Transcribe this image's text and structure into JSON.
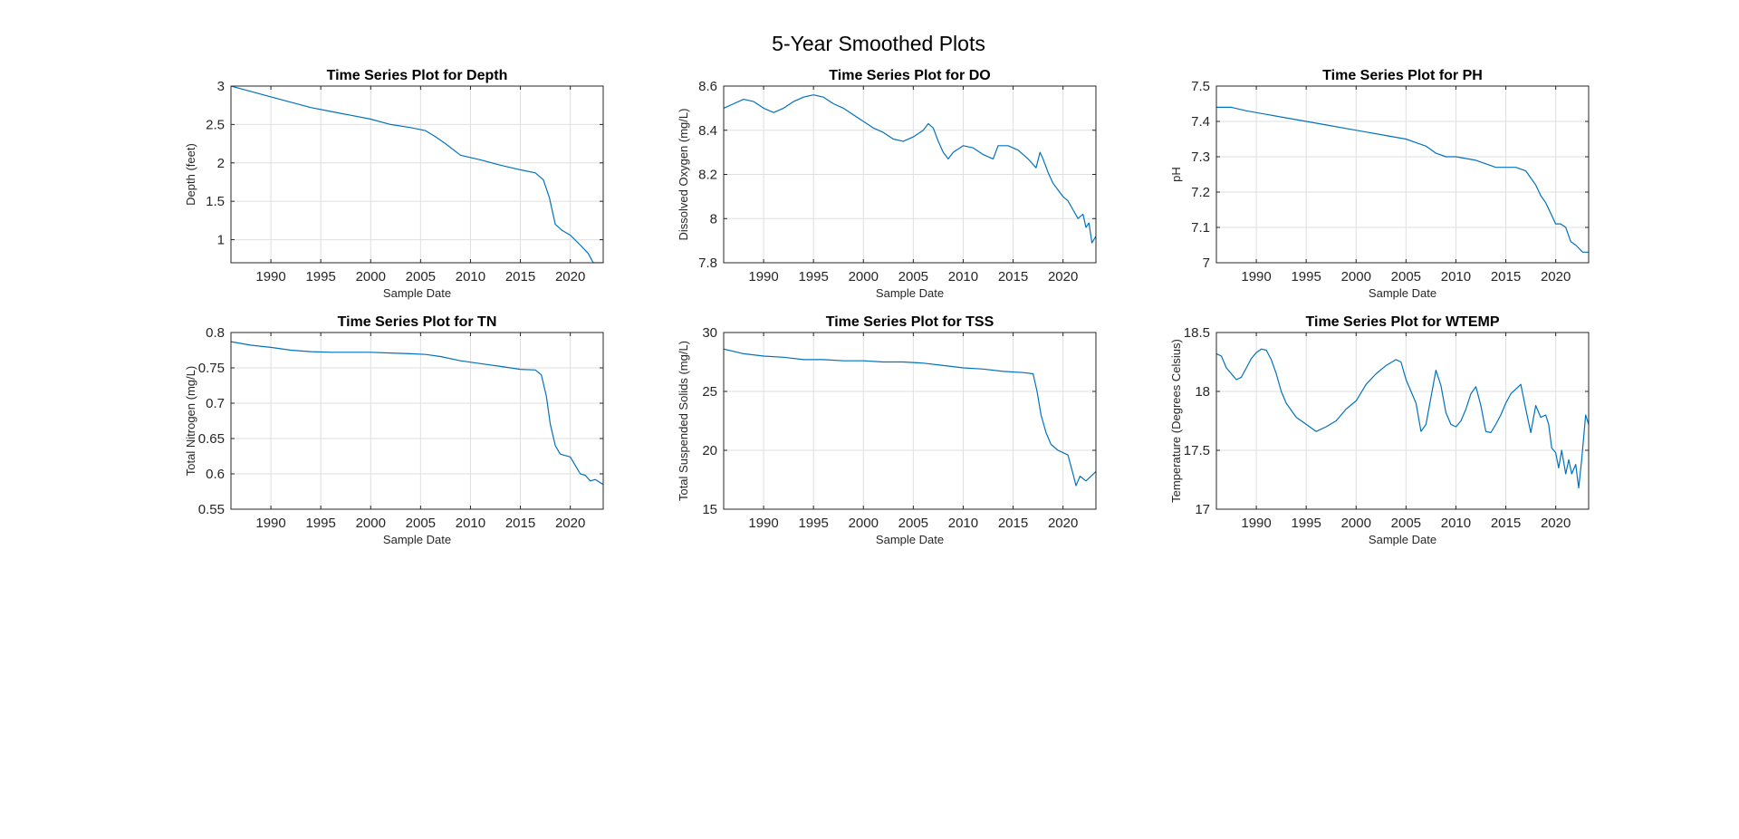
{
  "figure": {
    "title": "5-Year Smoothed Plots",
    "line_color": "#0072BD"
  },
  "chart_data": [
    {
      "type": "line",
      "title": "Time Series Plot for Depth",
      "xlabel": "Sample Date",
      "ylabel": "Depth (feet)",
      "xlim": [
        1986,
        2023.3
      ],
      "ylim": [
        0.7,
        3
      ],
      "xticks": [
        1990,
        1995,
        2000,
        2005,
        2010,
        2015,
        2020
      ],
      "yticks": [
        1,
        1.5,
        2,
        2.5,
        3
      ],
      "grid": true,
      "series": [
        {
          "x": [
            1986,
            1988,
            1990,
            1992,
            1994,
            1996,
            1998,
            2000,
            2002,
            2004,
            2005.5,
            2006.5,
            2007.5,
            2009,
            2011,
            2013,
            2015,
            2016.5,
            2017.3,
            2017.9,
            2018.5,
            2019.2,
            2020,
            2021,
            2021.8,
            2022.3,
            2023.3
          ],
          "y": [
            3.0,
            2.93,
            2.86,
            2.79,
            2.72,
            2.67,
            2.62,
            2.57,
            2.5,
            2.46,
            2.42,
            2.34,
            2.25,
            2.1,
            2.04,
            1.97,
            1.91,
            1.87,
            1.78,
            1.55,
            1.2,
            1.12,
            1.06,
            0.93,
            0.82,
            0.7,
            0.7
          ]
        }
      ]
    },
    {
      "type": "line",
      "title": "Time Series Plot for DO",
      "xlabel": "Sample Date",
      "ylabel": "Dissolved Oxygen (mg/L)",
      "xlim": [
        1986,
        2023.3
      ],
      "ylim": [
        7.8,
        8.6
      ],
      "xticks": [
        1990,
        1995,
        2000,
        2005,
        2010,
        2015,
        2020
      ],
      "yticks": [
        7.8,
        8,
        8.2,
        8.4,
        8.6
      ],
      "grid": true,
      "series": [
        {
          "x": [
            1986,
            1987,
            1988,
            1989,
            1990,
            1991,
            1992,
            1993,
            1994,
            1995,
            1996,
            1997,
            1998,
            1999,
            2000,
            2001,
            2002,
            2003,
            2004,
            2005,
            2006,
            2006.5,
            2007,
            2007.5,
            2008,
            2008.5,
            2009,
            2010,
            2011,
            2012,
            2013,
            2013.5,
            2014.5,
            2015.5,
            2016.5,
            2017.3,
            2017.7,
            2018,
            2018.5,
            2019,
            2019.5,
            2020,
            2020.5,
            2021,
            2021.5,
            2022,
            2022.3,
            2022.6,
            2022.9,
            2023.3
          ],
          "y": [
            8.5,
            8.52,
            8.54,
            8.53,
            8.5,
            8.48,
            8.5,
            8.53,
            8.55,
            8.56,
            8.55,
            8.52,
            8.5,
            8.47,
            8.44,
            8.41,
            8.39,
            8.36,
            8.35,
            8.37,
            8.4,
            8.43,
            8.41,
            8.35,
            8.3,
            8.27,
            8.3,
            8.33,
            8.32,
            8.29,
            8.27,
            8.33,
            8.33,
            8.31,
            8.27,
            8.23,
            8.3,
            8.27,
            8.21,
            8.16,
            8.13,
            8.1,
            8.08,
            8.04,
            8.0,
            8.02,
            7.96,
            7.98,
            7.89,
            7.92
          ]
        }
      ]
    },
    {
      "type": "line",
      "title": "Time Series Plot for PH",
      "xlabel": "Sample Date",
      "ylabel": "pH",
      "xlim": [
        1986,
        2023.3
      ],
      "ylim": [
        7,
        7.5
      ],
      "xticks": [
        1990,
        1995,
        2000,
        2005,
        2010,
        2015,
        2020
      ],
      "yticks": [
        7,
        7.1,
        7.2,
        7.3,
        7.4,
        7.5
      ],
      "grid": true,
      "series": [
        {
          "x": [
            1986,
            1987.5,
            1989,
            1991,
            1993,
            1995,
            1997,
            1999,
            2001,
            2003,
            2005,
            2006,
            2007,
            2008,
            2009,
            2010,
            2012,
            2013,
            2014,
            2016,
            2017,
            2017.5,
            2018,
            2018.5,
            2019,
            2019.5,
            2020,
            2020.5,
            2021,
            2021.5,
            2022,
            2022.7,
            2023.3
          ],
          "y": [
            7.44,
            7.44,
            7.43,
            7.42,
            7.41,
            7.4,
            7.39,
            7.38,
            7.37,
            7.36,
            7.35,
            7.34,
            7.33,
            7.31,
            7.3,
            7.3,
            7.29,
            7.28,
            7.27,
            7.27,
            7.26,
            7.24,
            7.22,
            7.19,
            7.17,
            7.14,
            7.11,
            7.11,
            7.1,
            7.06,
            7.05,
            7.03,
            7.03
          ]
        }
      ]
    },
    {
      "type": "line",
      "title": "Time Series Plot for TN",
      "xlabel": "Sample Date",
      "ylabel": "Total Nitrogen (mg/L)",
      "xlim": [
        1986,
        2023.3
      ],
      "ylim": [
        0.55,
        0.8
      ],
      "xticks": [
        1990,
        1995,
        2000,
        2005,
        2010,
        2015,
        2020
      ],
      "yticks": [
        0.55,
        0.6,
        0.65,
        0.7,
        0.75,
        0.8
      ],
      "grid": true,
      "series": [
        {
          "x": [
            1986,
            1988,
            1990,
            1992,
            1994,
            1996,
            1998,
            2000,
            2002,
            2004,
            2005.5,
            2007,
            2009,
            2011,
            2013,
            2015,
            2016.5,
            2017.1,
            2017.6,
            2018,
            2018.5,
            2019,
            2020,
            2020.5,
            2021,
            2021.5,
            2022,
            2022.5,
            2023.3
          ],
          "y": [
            0.787,
            0.782,
            0.779,
            0.775,
            0.773,
            0.772,
            0.772,
            0.772,
            0.771,
            0.77,
            0.769,
            0.766,
            0.76,
            0.756,
            0.752,
            0.748,
            0.747,
            0.74,
            0.71,
            0.67,
            0.64,
            0.628,
            0.624,
            0.612,
            0.6,
            0.598,
            0.59,
            0.592,
            0.585
          ]
        }
      ]
    },
    {
      "type": "line",
      "title": "Time Series Plot for TSS",
      "xlabel": "Sample Date",
      "ylabel": "Total Suspended Solids (mg/L)",
      "xlim": [
        1986,
        2023.3
      ],
      "ylim": [
        15,
        30
      ],
      "xticks": [
        1990,
        1995,
        2000,
        2005,
        2010,
        2015,
        2020
      ],
      "yticks": [
        15,
        20,
        25,
        30
      ],
      "grid": true,
      "series": [
        {
          "x": [
            1986,
            1988,
            1990,
            1992,
            1994,
            1996,
            1998,
            2000,
            2002,
            2004,
            2006,
            2008,
            2010,
            2012,
            2014,
            2016,
            2017,
            2017.4,
            2017.8,
            2018.3,
            2018.8,
            2019.5,
            2020,
            2020.5,
            2021,
            2021.3,
            2021.7,
            2022.3,
            2023.3
          ],
          "y": [
            28.6,
            28.2,
            28.0,
            27.9,
            27.7,
            27.7,
            27.6,
            27.6,
            27.5,
            27.5,
            27.4,
            27.2,
            27.0,
            26.9,
            26.7,
            26.6,
            26.5,
            25.0,
            23.0,
            21.5,
            20.5,
            20.0,
            19.8,
            19.6,
            18.0,
            17.0,
            17.8,
            17.4,
            18.2
          ]
        }
      ]
    },
    {
      "type": "line",
      "title": "Time Series Plot for WTEMP",
      "xlabel": "Sample Date",
      "ylabel": "Temperature (Degrees Celsius)",
      "xlim": [
        1986,
        2023.3
      ],
      "ylim": [
        17,
        18.5
      ],
      "xticks": [
        1990,
        1995,
        2000,
        2005,
        2010,
        2015,
        2020
      ],
      "yticks": [
        17,
        17.5,
        18,
        18.5
      ],
      "grid": true,
      "series": [
        {
          "x": [
            1986,
            1986.5,
            1987,
            1987.5,
            1988,
            1988.5,
            1989,
            1989.5,
            1990,
            1990.5,
            1991,
            1991.5,
            1992,
            1992.5,
            1993,
            1994,
            1995,
            1996,
            1997,
            1998,
            1999,
            2000,
            2001,
            2002,
            2003,
            2004,
            2004.5,
            2005,
            2005.5,
            2006,
            2006.5,
            2007,
            2007.5,
            2008,
            2008.5,
            2009,
            2009.5,
            2010,
            2010.5,
            2011,
            2011.5,
            2012,
            2012.5,
            2013,
            2013.5,
            2014,
            2014.5,
            2015,
            2015.5,
            2016,
            2016.5,
            2017,
            2017.5,
            2018,
            2018.5,
            2019,
            2019.3,
            2019.6,
            2020,
            2020.3,
            2020.6,
            2021,
            2021.3,
            2021.6,
            2022,
            2022.3,
            2022.6,
            2023,
            2023.3
          ],
          "y": [
            18.32,
            18.3,
            18.2,
            18.15,
            18.1,
            18.12,
            18.2,
            18.28,
            18.33,
            18.36,
            18.35,
            18.27,
            18.15,
            18.0,
            17.9,
            17.78,
            17.72,
            17.66,
            17.7,
            17.75,
            17.85,
            17.92,
            18.06,
            18.15,
            18.22,
            18.27,
            18.25,
            18.1,
            18.0,
            17.9,
            17.66,
            17.72,
            17.95,
            18.18,
            18.05,
            17.82,
            17.72,
            17.7,
            17.75,
            17.85,
            17.98,
            18.04,
            17.88,
            17.66,
            17.65,
            17.72,
            17.8,
            17.9,
            17.98,
            18.02,
            18.06,
            17.85,
            17.65,
            17.88,
            17.78,
            17.8,
            17.72,
            17.52,
            17.48,
            17.35,
            17.5,
            17.3,
            17.42,
            17.3,
            17.38,
            17.18,
            17.42,
            17.8,
            17.72
          ]
        }
      ]
    }
  ]
}
